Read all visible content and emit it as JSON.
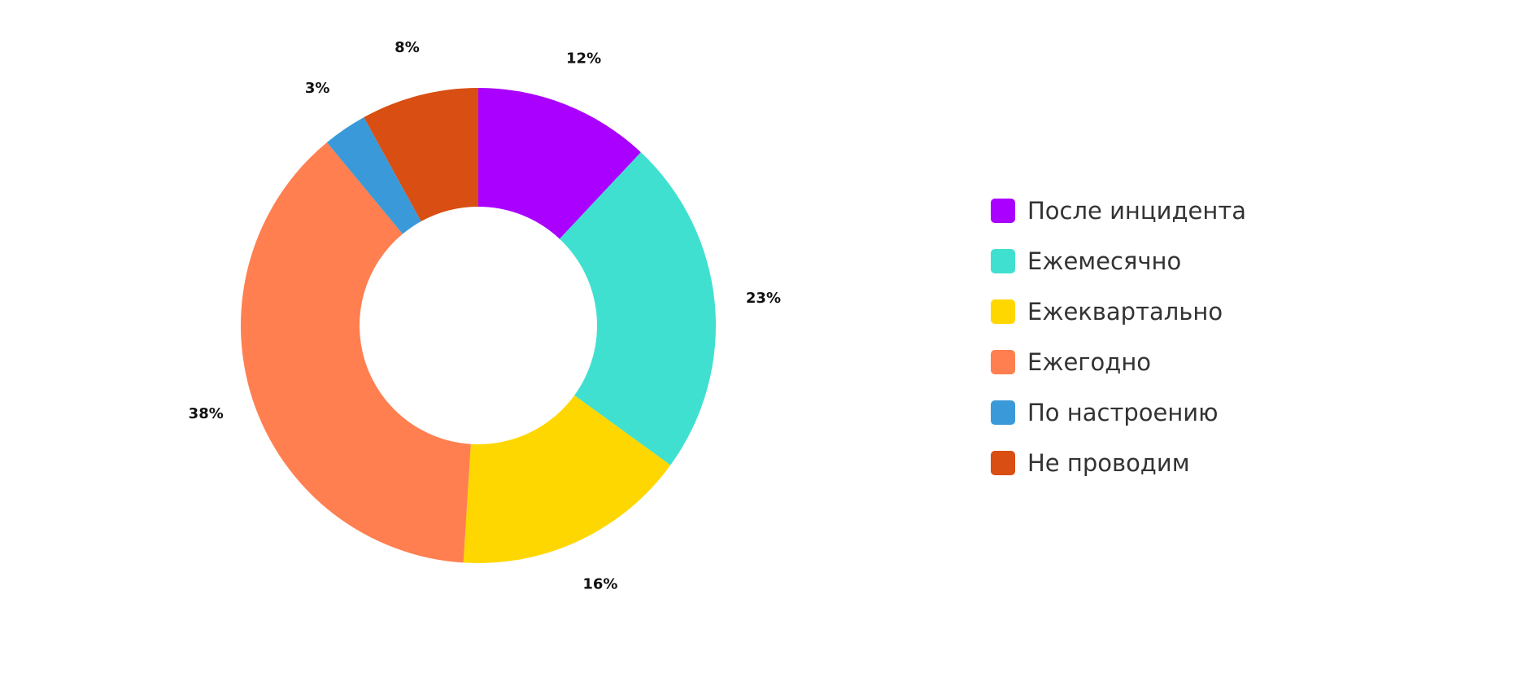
{
  "chart_data": {
    "type": "pie",
    "variant": "donut",
    "title": "",
    "categories": [
      "После инцидента",
      "Ежемесячно",
      "Ежеквартально",
      "Ежегодно",
      "По настроению",
      "Не проводим"
    ],
    "values": [
      12,
      23,
      16,
      38,
      3,
      8
    ],
    "labels": [
      "12%",
      "23%",
      "16%",
      "38%",
      "3%",
      "8%"
    ],
    "colors": [
      "#AA00FF",
      "#40E0D0",
      "#FFD700",
      "#FF7F50",
      "#3A9AD9",
      "#D94E12"
    ],
    "legend_position": "right",
    "start_angle": "top",
    "direction": "clockwise"
  }
}
